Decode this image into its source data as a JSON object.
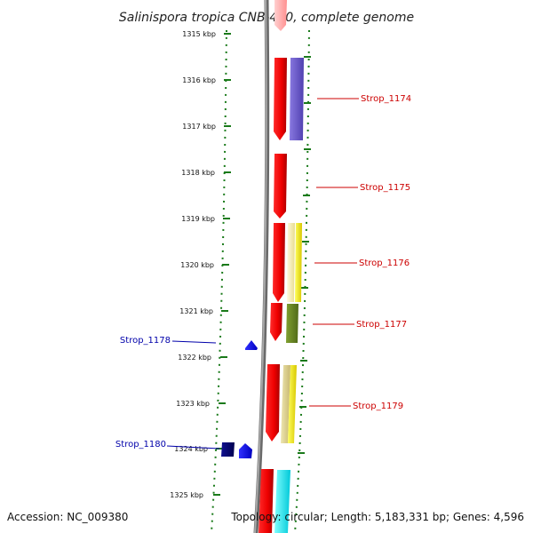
{
  "title": "Salinispora tropica CNB-440, complete genome",
  "footer": {
    "accession": "Accession: NC_009380",
    "summary": "Topology: circular; Length: 5,183,331 bp; Genes: 4,596"
  },
  "scale": {
    "unit": "kbp",
    "ticks": [
      "1315 kbp",
      "1316 kbp",
      "1317 kbp",
      "1318 kbp",
      "1319 kbp",
      "1320 kbp",
      "1321 kbp",
      "1322 kbp",
      "1323 kbp",
      "1324 kbp",
      "1325 kbp"
    ]
  },
  "colors": {
    "forward_label": "#cc0000",
    "reverse_label": "#0000aa",
    "backbone": "#888888",
    "dotted_guides": "#1a7a1a",
    "cds": "#ff0000",
    "pink": "#ffb0b0",
    "purple": "#6a5acd",
    "yellow": "#ffff00",
    "olive": "#6b8e23",
    "cyan": "#00ffff",
    "blue": "#0000ff",
    "navy": "#000080"
  },
  "genes": [
    {
      "label": "Strop_1174",
      "strand": "forward"
    },
    {
      "label": "Strop_1175",
      "strand": "forward"
    },
    {
      "label": "Strop_1176",
      "strand": "forward"
    },
    {
      "label": "Strop_1177",
      "strand": "forward"
    },
    {
      "label": "Strop_1178",
      "strand": "reverse"
    },
    {
      "label": "Strop_1179",
      "strand": "forward"
    },
    {
      "label": "Strop_1180",
      "strand": "reverse"
    }
  ]
}
